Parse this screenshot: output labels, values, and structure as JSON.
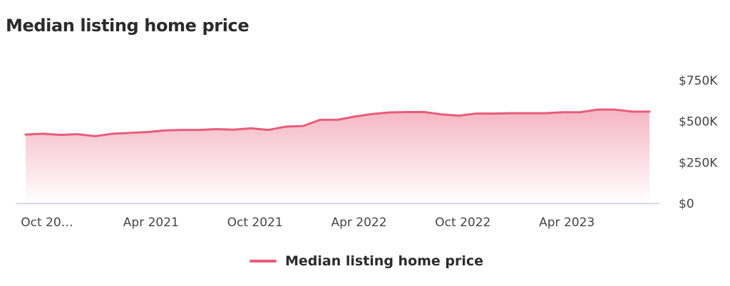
{
  "colors": {
    "series": "#e85c7a",
    "axis": "#b9c4dc"
  },
  "chart_data": {
    "type": "area",
    "title": "Median listing home price",
    "ylim": [
      0,
      750000
    ],
    "yticks": [
      {
        "value": 0,
        "label": "$0"
      },
      {
        "value": 250000,
        "label": "$250K"
      },
      {
        "value": 500000,
        "label": "$500K"
      },
      {
        "value": 750000,
        "label": "$750K"
      }
    ],
    "xticks": [
      {
        "index": 0,
        "label": "Oct 20…"
      },
      {
        "index": 6,
        "label": "Apr 2021"
      },
      {
        "index": 12,
        "label": "Oct 2021"
      },
      {
        "index": 18,
        "label": "Apr 2022"
      },
      {
        "index": 24,
        "label": "Oct 2022"
      },
      {
        "index": 30,
        "label": "Apr 2023"
      }
    ],
    "x": [
      "Oct 2020",
      "Nov 2020",
      "Dec 2020",
      "Jan 2021",
      "Feb 2021",
      "Mar 2021",
      "Apr 2021",
      "May 2021",
      "Jun 2021",
      "Jul 2021",
      "Aug 2021",
      "Sep 2021",
      "Oct 2021",
      "Nov 2021",
      "Dec 2021",
      "Jan 2022",
      "Feb 2022",
      "Mar 2022",
      "Apr 2022",
      "May 2022",
      "Jun 2022",
      "Jul 2022",
      "Aug 2022",
      "Sep 2022",
      "Oct 2022",
      "Nov 2022",
      "Dec 2022",
      "Jan 2023",
      "Feb 2023",
      "Mar 2023",
      "Apr 2023",
      "May 2023",
      "Jun 2023",
      "Jul 2023",
      "Aug 2023",
      "Sep 2023",
      "Oct 2023"
    ],
    "series": [
      {
        "name": "Median listing home price",
        "values": [
          420000,
          425000,
          418000,
          422000,
          410000,
          425000,
          430000,
          435000,
          445000,
          448000,
          448000,
          453000,
          450000,
          458000,
          448000,
          468000,
          472000,
          510000,
          510000,
          530000,
          545000,
          555000,
          557000,
          557000,
          543000,
          535000,
          548000,
          548000,
          550000,
          550000,
          550000,
          556000,
          556000,
          572000,
          572000,
          560000,
          560000
        ]
      }
    ],
    "legend": "bottom-center",
    "grid": false
  }
}
